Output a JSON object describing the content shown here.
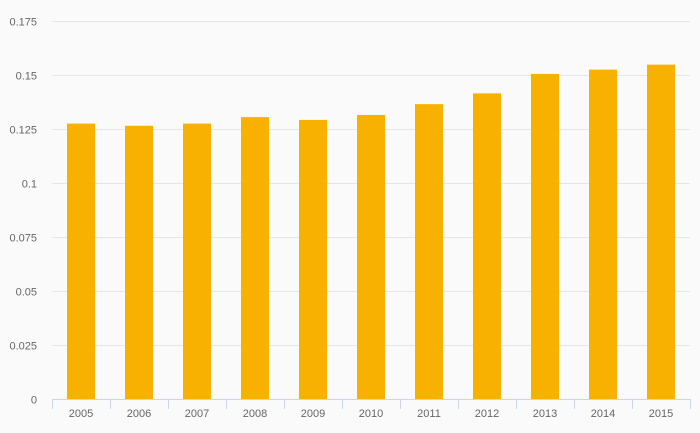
{
  "chart_data": {
    "type": "bar",
    "title": "",
    "xlabel": "",
    "ylabel": "",
    "categories": [
      "2005",
      "2006",
      "2007",
      "2008",
      "2009",
      "2010",
      "2011",
      "2012",
      "2013",
      "2014",
      "2015"
    ],
    "series": [
      {
        "values": [
          0.1275,
          0.1265,
          0.1275,
          0.1305,
          0.1292,
          0.1315,
          0.1365,
          0.1415,
          0.1505,
          0.1525,
          0.1548
        ]
      }
    ],
    "ylim": [
      0,
      0.175
    ],
    "yticks": [
      "0",
      "0.025",
      "0.05",
      "0.075",
      "0.1",
      "0.125",
      "0.15",
      "0.175"
    ],
    "grid": true,
    "legend": "none",
    "colors": {
      "bar": "#f9b100",
      "grid": "#e6e6e6",
      "axis": "#ccd6eb",
      "tick_text": "#666666",
      "background": "#fafafa"
    }
  }
}
